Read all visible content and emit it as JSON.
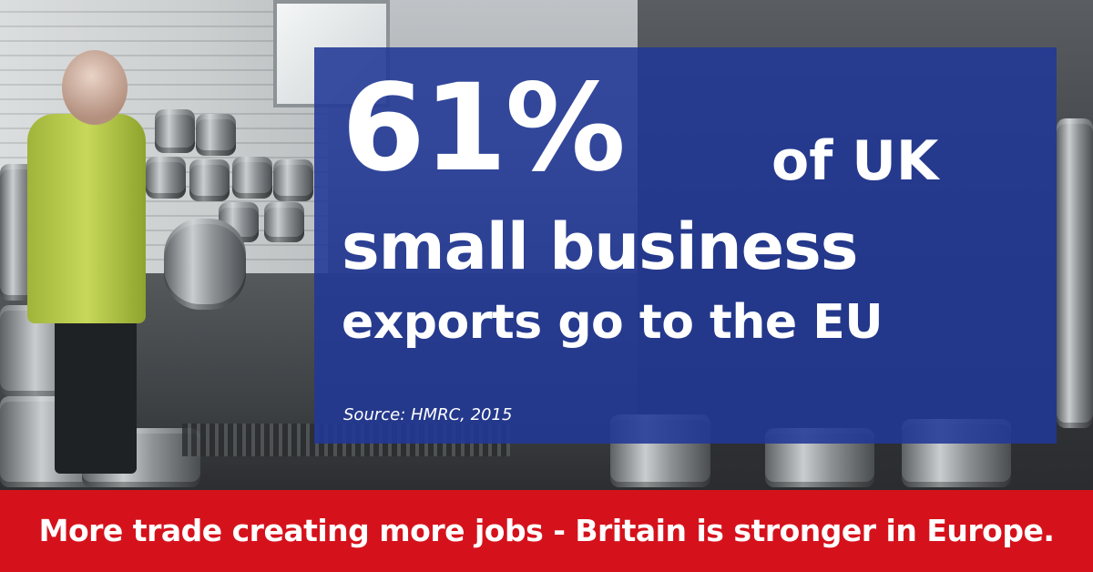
{
  "headline": {
    "percent": "61%",
    "line1_rest": "of UK",
    "line2": "small business",
    "line3": "exports go to the EU"
  },
  "source": "Source: HMRC, 2015",
  "footer": {
    "text": "More trade creating more jobs - Britain is stronger in Europe."
  },
  "colors": {
    "panel_blue": "#213896",
    "footer_red": "#d5121c",
    "text_white": "#ffffff"
  }
}
